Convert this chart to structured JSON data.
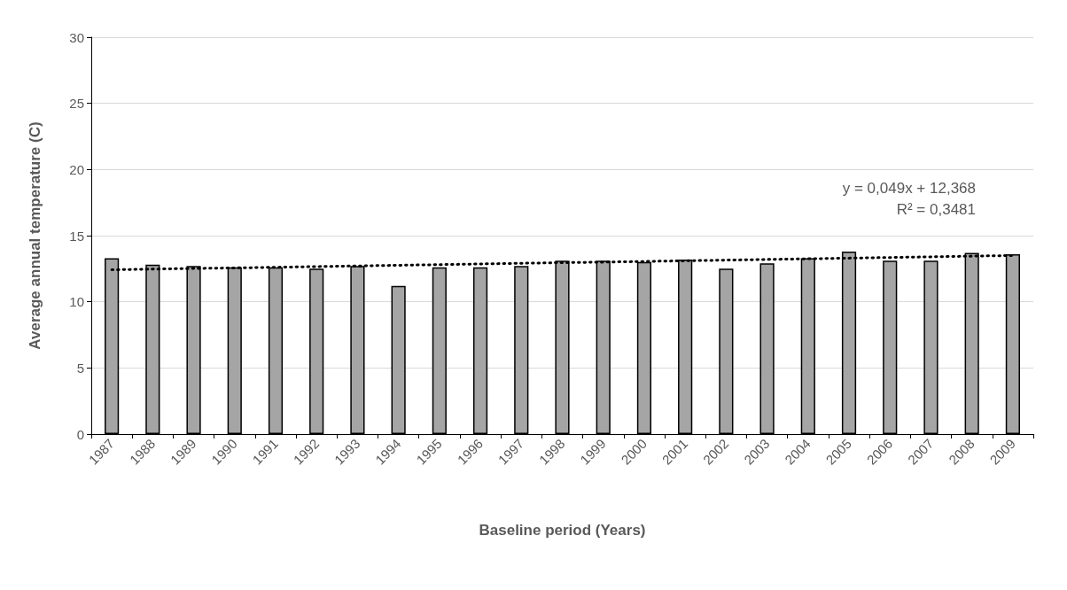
{
  "chart_data": {
    "type": "bar",
    "xlabel": "Baseline period (Years)",
    "ylabel": "Average annual temperature (C)",
    "categories": [
      "1987",
      "1988",
      "1989",
      "1990",
      "1991",
      "1992",
      "1993",
      "1994",
      "1995",
      "1996",
      "1997",
      "1998",
      "1999",
      "2000",
      "2001",
      "2002",
      "2003",
      "2004",
      "2005",
      "2006",
      "2007",
      "2008",
      "2009"
    ],
    "series": [
      {
        "color": "#a5a5a5",
        "values": [
          13.3,
          12.8,
          12.7,
          12.6,
          12.6,
          12.5,
          12.7,
          11.2,
          12.6,
          12.6,
          12.7,
          13.1,
          13.1,
          13.0,
          13.2,
          12.5,
          12.9,
          13.3,
          13.8,
          13.1,
          13.1,
          13.7,
          13.6
        ]
      },
      {
        "type": "line",
        "color": "#000000",
        "line_style": "dotted",
        "marker": "none",
        "values": [
          12.42,
          12.47,
          12.52,
          12.56,
          12.61,
          12.66,
          12.71,
          12.76,
          12.81,
          12.86,
          12.91,
          12.96,
          13.0,
          13.05,
          13.1,
          13.15,
          13.2,
          13.25,
          13.3,
          13.35,
          13.4,
          13.45,
          13.5
        ]
      }
    ],
    "ylim": [
      0,
      30
    ],
    "yticks": [
      0,
      5,
      10,
      15,
      20,
      25,
      30
    ],
    "grid": "y",
    "annotations": [
      "y = 0,049x + 12,368",
      "R² = 0,3481"
    ]
  }
}
